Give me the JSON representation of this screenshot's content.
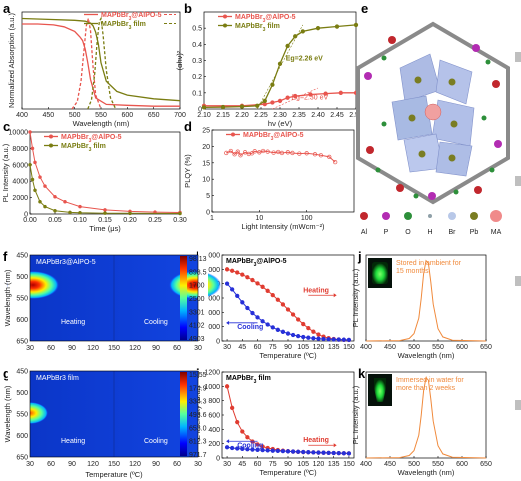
{
  "panel_labels": [
    "a",
    "b",
    "c",
    "d",
    "e",
    "f",
    "g",
    "h",
    "i",
    "j",
    "k"
  ],
  "chart_data": [
    {
      "panel": "a",
      "type": "line",
      "xlabel": "Wavelength (nm)",
      "ylabel": "Normalized Absorption (a.u.)",
      "xlim": [
        400,
        700
      ],
      "ylim": [
        0,
        1.05
      ],
      "xticks": [
        400,
        450,
        500,
        550,
        600,
        650,
        700
      ],
      "legend": [
        "MAPbBr3@AlPO-5",
        "MAPbBr3 film"
      ],
      "series": [
        {
          "name": "MAPbBr3@AlPO-5",
          "kind": "absorption",
          "color": "#e8554e",
          "x": [
            400,
            430,
            460,
            480,
            500,
            510,
            515,
            520,
            525,
            530,
            540,
            560,
            600,
            650,
            700
          ],
          "y": [
            0.92,
            0.92,
            0.91,
            0.89,
            0.84,
            0.78,
            0.74,
            0.65,
            0.5,
            0.32,
            0.12,
            0.05,
            0.04,
            0.03,
            0.03
          ]
        },
        {
          "name": "MAPbBr3 film",
          "kind": "absorption",
          "color": "#7a7d12",
          "x": [
            400,
            450,
            500,
            520,
            530,
            535,
            540,
            545,
            550,
            560,
            580,
            600,
            650,
            700
          ],
          "y": [
            0.98,
            0.97,
            0.96,
            0.95,
            0.93,
            0.9,
            0.83,
            0.7,
            0.5,
            0.3,
            0.19,
            0.15,
            0.11,
            0.09
          ]
        },
        {
          "name": "MAPbBr3@AlPO-5",
          "kind": "PL",
          "color": "#e8554e",
          "x": [
            495,
            505,
            512,
            518,
            522,
            526,
            530,
            535,
            540,
            550
          ],
          "y": [
            0,
            0.08,
            0.3,
            0.65,
            0.9,
            0.98,
            0.85,
            0.45,
            0.15,
            0
          ]
        },
        {
          "name": "MAPbBr3 film",
          "kind": "PL",
          "color": "#7a7d12",
          "x": [
            525,
            532,
            538,
            543,
            547,
            550,
            554,
            560,
            568,
            578
          ],
          "y": [
            0,
            0.1,
            0.38,
            0.75,
            0.95,
            0.98,
            0.8,
            0.42,
            0.12,
            0
          ]
        }
      ]
    },
    {
      "panel": "b",
      "type": "line",
      "xlabel": "hν (eV)",
      "ylabel": "(αhν)²",
      "xlim": [
        2.1,
        2.5
      ],
      "ylim": [
        0,
        0.6
      ],
      "xticks": [
        2.1,
        2.15,
        2.2,
        2.25,
        2.3,
        2.35,
        2.4,
        2.45,
        2.5
      ],
      "yticks": [
        0,
        0.1,
        0.2,
        0.3,
        0.4,
        0.5
      ],
      "legend": [
        "MAPbBr3@AlPO-5",
        "MAPbBr3 film"
      ],
      "annotations": [
        {
          "text": "Eg=2.26 eV",
          "series": 1
        },
        {
          "text": "Eg=2.30 eV",
          "series": 0
        }
      ],
      "series": [
        {
          "name": "MAPbBr3@AlPO-5",
          "color": "#e8554e",
          "x": [
            2.1,
            2.2,
            2.26,
            2.28,
            2.3,
            2.32,
            2.34,
            2.38,
            2.42,
            2.46,
            2.5
          ],
          "y": [
            0.02,
            0.02,
            0.03,
            0.04,
            0.05,
            0.07,
            0.08,
            0.09,
            0.095,
            0.1,
            0.1
          ]
        },
        {
          "name": "MAPbBr3 film",
          "color": "#7a7d12",
          "x": [
            2.1,
            2.15,
            2.2,
            2.24,
            2.26,
            2.28,
            2.3,
            2.32,
            2.34,
            2.36,
            2.4,
            2.45,
            2.5
          ],
          "y": [
            0.01,
            0.012,
            0.015,
            0.02,
            0.05,
            0.15,
            0.28,
            0.39,
            0.45,
            0.48,
            0.5,
            0.51,
            0.52
          ]
        }
      ]
    },
    {
      "panel": "c",
      "type": "line",
      "xlabel": "Time (μs)",
      "ylabel": "PL Intensity (a.u.)",
      "xlim": [
        0,
        0.3
      ],
      "ylim": [
        0,
        10000
      ],
      "xticks": [
        0,
        0.05,
        0.1,
        0.15,
        0.2,
        0.25,
        0.3
      ],
      "yticks": [
        0,
        2000,
        4000,
        6000,
        8000,
        10000
      ],
      "legend": [
        "MAPbBr3@AlPO-5",
        "MAPbBr3 film"
      ],
      "series": [
        {
          "name": "MAPbBr3@AlPO-5",
          "color": "#e8554e",
          "x": [
            0,
            0.005,
            0.01,
            0.02,
            0.03,
            0.05,
            0.07,
            0.1,
            0.15,
            0.2,
            0.25,
            0.3
          ],
          "y": [
            10000,
            8000,
            6300,
            4500,
            3400,
            2100,
            1500,
            900,
            500,
            320,
            230,
            180
          ]
        },
        {
          "name": "MAPbBr3 film",
          "color": "#7a7d12",
          "x": [
            0,
            0.005,
            0.01,
            0.02,
            0.03,
            0.05,
            0.08,
            0.1,
            0.15,
            0.2,
            0.3
          ],
          "y": [
            6000,
            4200,
            2900,
            1500,
            900,
            400,
            200,
            150,
            100,
            80,
            60
          ]
        }
      ]
    },
    {
      "panel": "d",
      "type": "scatter",
      "xlabel": "Light Intensity (mWcm⁻²)",
      "ylabel": "PLQY (%)",
      "xscale": "log",
      "xlim": [
        1,
        1000
      ],
      "ylim": [
        0,
        25
      ],
      "xticks": [
        1,
        10,
        100
      ],
      "yticks": [
        0,
        5,
        10,
        15,
        20,
        25
      ],
      "legend": [
        "MAPbBr3@AlPO-5"
      ],
      "series": [
        {
          "name": "MAPbBr3@AlPO-5",
          "color": "#e8554e",
          "x": [
            2,
            2.5,
            3,
            3.5,
            4,
            5,
            6,
            7,
            8,
            10,
            12,
            15,
            20,
            25,
            30,
            40,
            50,
            70,
            100,
            150,
            200,
            300,
            400
          ],
          "y": [
            18,
            18.6,
            17.6,
            18.4,
            17.3,
            18.2,
            17.7,
            17.9,
            18.5,
            18.2,
            18.6,
            18.4,
            18.1,
            18.3,
            18.0,
            18.2,
            18.0,
            17.8,
            17.9,
            17.6,
            17.3,
            16.8,
            15.2
          ]
        }
      ]
    },
    {
      "panel": "f",
      "type": "heatmap",
      "title": "MAPbBr3@AlPO-5",
      "xlabel": "Temperature (ºC)",
      "ylabel": "Wavelength (nm)",
      "xticks": [
        "30",
        "60",
        "90",
        "120",
        "150",
        "120",
        "90",
        "60",
        "30"
      ],
      "yticks": [
        450,
        500,
        550,
        600,
        650
      ],
      "regions": [
        "Heating",
        "Cooling"
      ],
      "colorbar": [
        "98.13",
        "898.5",
        "1700",
        "2500",
        "3301",
        "4102",
        "4903"
      ]
    },
    {
      "panel": "g",
      "type": "heatmap",
      "title": "MAPbBr3 film",
      "xlabel": "Temperature (ºC)",
      "ylabel": "Wavelength (nm)",
      "xticks": [
        "30",
        "60",
        "90",
        "120",
        "150",
        "120",
        "90",
        "60",
        "30"
      ],
      "yticks": [
        450,
        500,
        550,
        600,
        650
      ],
      "regions": [
        "Heating",
        "Cooling"
      ],
      "colorbar": [
        "15.55",
        "174.9",
        "334.3",
        "493.6",
        "653.0",
        "812.3",
        "971.7"
      ]
    },
    {
      "panel": "h",
      "type": "line",
      "title": "MAPbBr3@AlPO-5",
      "xlabel": "Temperature (ºC)",
      "ylabel": "PL Intensity (a.u.)",
      "xlim": [
        25,
        155
      ],
      "ylim": [
        0,
        6000
      ],
      "xticks": [
        30,
        45,
        60,
        75,
        90,
        105,
        120,
        135,
        150
      ],
      "yticks": [
        0,
        1000,
        2000,
        3000,
        4000,
        5000,
        6000
      ],
      "annotations": [
        {
          "text": "Heating"
        },
        {
          "text": "Cooling"
        }
      ],
      "series": [
        {
          "name": "Heating",
          "color": "#e03c31",
          "x": [
            30,
            35,
            40,
            45,
            50,
            55,
            60,
            65,
            70,
            75,
            80,
            85,
            90,
            95,
            100,
            105,
            110,
            115,
            120,
            125,
            130,
            135,
            140,
            145,
            150
          ],
          "y": [
            5000,
            4900,
            4780,
            4630,
            4450,
            4250,
            4020,
            3780,
            3500,
            3200,
            2880,
            2550,
            2200,
            1850,
            1500,
            1180,
            900,
            650,
            450,
            300,
            200,
            140,
            100,
            80,
            70
          ]
        },
        {
          "name": "Cooling",
          "color": "#2730d8",
          "x": [
            30,
            35,
            40,
            45,
            50,
            55,
            60,
            65,
            70,
            75,
            80,
            85,
            90,
            95,
            100,
            105,
            110,
            115,
            120,
            125,
            130,
            135,
            140,
            145,
            150
          ],
          "y": [
            4000,
            3600,
            3150,
            2700,
            2300,
            1950,
            1650,
            1380,
            1150,
            950,
            780,
            640,
            520,
            420,
            340,
            280,
            230,
            190,
            160,
            140,
            120,
            110,
            100,
            90,
            80
          ]
        }
      ]
    },
    {
      "panel": "i",
      "type": "line",
      "title": "MAPbBr3 film",
      "xlabel": "Temperature (ºC)",
      "ylabel": "PL Intensity (a.u.)",
      "xlim": [
        25,
        155
      ],
      "ylim": [
        0,
        1200
      ],
      "xticks": [
        30,
        45,
        60,
        75,
        90,
        105,
        120,
        135,
        150
      ],
      "yticks": [
        0,
        200,
        400,
        600,
        800,
        1000,
        1200
      ],
      "annotations": [
        {
          "text": "Heating"
        },
        {
          "text": "Cooling"
        }
      ],
      "series": [
        {
          "name": "Heating",
          "color": "#e03c31",
          "x": [
            30,
            35,
            40,
            45,
            50,
            55,
            60,
            65,
            70,
            75,
            80,
            85,
            90,
            95,
            100,
            105,
            110,
            115,
            120,
            125,
            130,
            135,
            140,
            145,
            150
          ],
          "y": [
            1000,
            700,
            500,
            370,
            290,
            230,
            190,
            160,
            140,
            125,
            112,
            102,
            95,
            90,
            86,
            83,
            80,
            78,
            76,
            74,
            72,
            70,
            68,
            66,
            64
          ]
        },
        {
          "name": "Cooling",
          "color": "#2730d8",
          "x": [
            30,
            35,
            40,
            45,
            50,
            55,
            60,
            65,
            70,
            75,
            80,
            85,
            90,
            95,
            100,
            105,
            110,
            115,
            120,
            125,
            130,
            135,
            140,
            145,
            150
          ],
          "y": [
            150,
            140,
            133,
            127,
            122,
            118,
            114,
            110,
            106,
            102,
            99,
            96,
            93,
            90,
            87,
            84,
            81,
            78,
            76,
            74,
            72,
            70,
            68,
            66,
            64
          ]
        }
      ]
    },
    {
      "panel": "j",
      "type": "line",
      "xlabel": "Wavelength (nm)",
      "ylabel": "PL Intensity (a.u.)",
      "xlim": [
        400,
        650
      ],
      "xticks": [
        400,
        450,
        500,
        550,
        600,
        650
      ],
      "annotation": "Stored in ambient for\n15 months",
      "series": [
        {
          "name": "",
          "color": "#f08a3c",
          "x": [
            400,
            470,
            490,
            500,
            510,
            515,
            520,
            525,
            530,
            535,
            540,
            550,
            560,
            580,
            650
          ],
          "y": [
            0,
            0.005,
            0.03,
            0.09,
            0.28,
            0.52,
            0.82,
            0.98,
            0.95,
            0.72,
            0.45,
            0.15,
            0.05,
            0.01,
            0
          ]
        }
      ]
    },
    {
      "panel": "k",
      "type": "line",
      "xlabel": "Wavelength (nm)",
      "ylabel": "PL Intensity (a.u.)",
      "xlim": [
        400,
        650
      ],
      "xticks": [
        400,
        450,
        500,
        550,
        600,
        650
      ],
      "annotation": "Immersed in water for\nmore than 2 weeks",
      "series": [
        {
          "name": "",
          "color": "#f08a3c",
          "x": [
            400,
            470,
            490,
            500,
            510,
            515,
            520,
            525,
            530,
            535,
            540,
            550,
            560,
            580,
            650
          ],
          "y": [
            0,
            0.005,
            0.03,
            0.09,
            0.28,
            0.52,
            0.82,
            0.98,
            0.95,
            0.72,
            0.45,
            0.15,
            0.05,
            0.01,
            0
          ]
        }
      ]
    }
  ],
  "structure_legend": {
    "items": [
      {
        "label": "Al",
        "color": "#c1272d"
      },
      {
        "label": "P",
        "color": "#b22cb2"
      },
      {
        "label": "O",
        "color": "#2d8f3a"
      },
      {
        "label": "H",
        "color": "#8fa0a8"
      },
      {
        "label": "Br",
        "color": "#b8c8e8"
      },
      {
        "label": "Pb",
        "color": "#7a7d22"
      },
      {
        "label": "MA",
        "color": "#f08a8a"
      }
    ]
  },
  "colors": {
    "accent_red": "#e8554e",
    "olive": "#7a7d12",
    "blue": "#2730d8",
    "orange": "#f08a3c"
  }
}
